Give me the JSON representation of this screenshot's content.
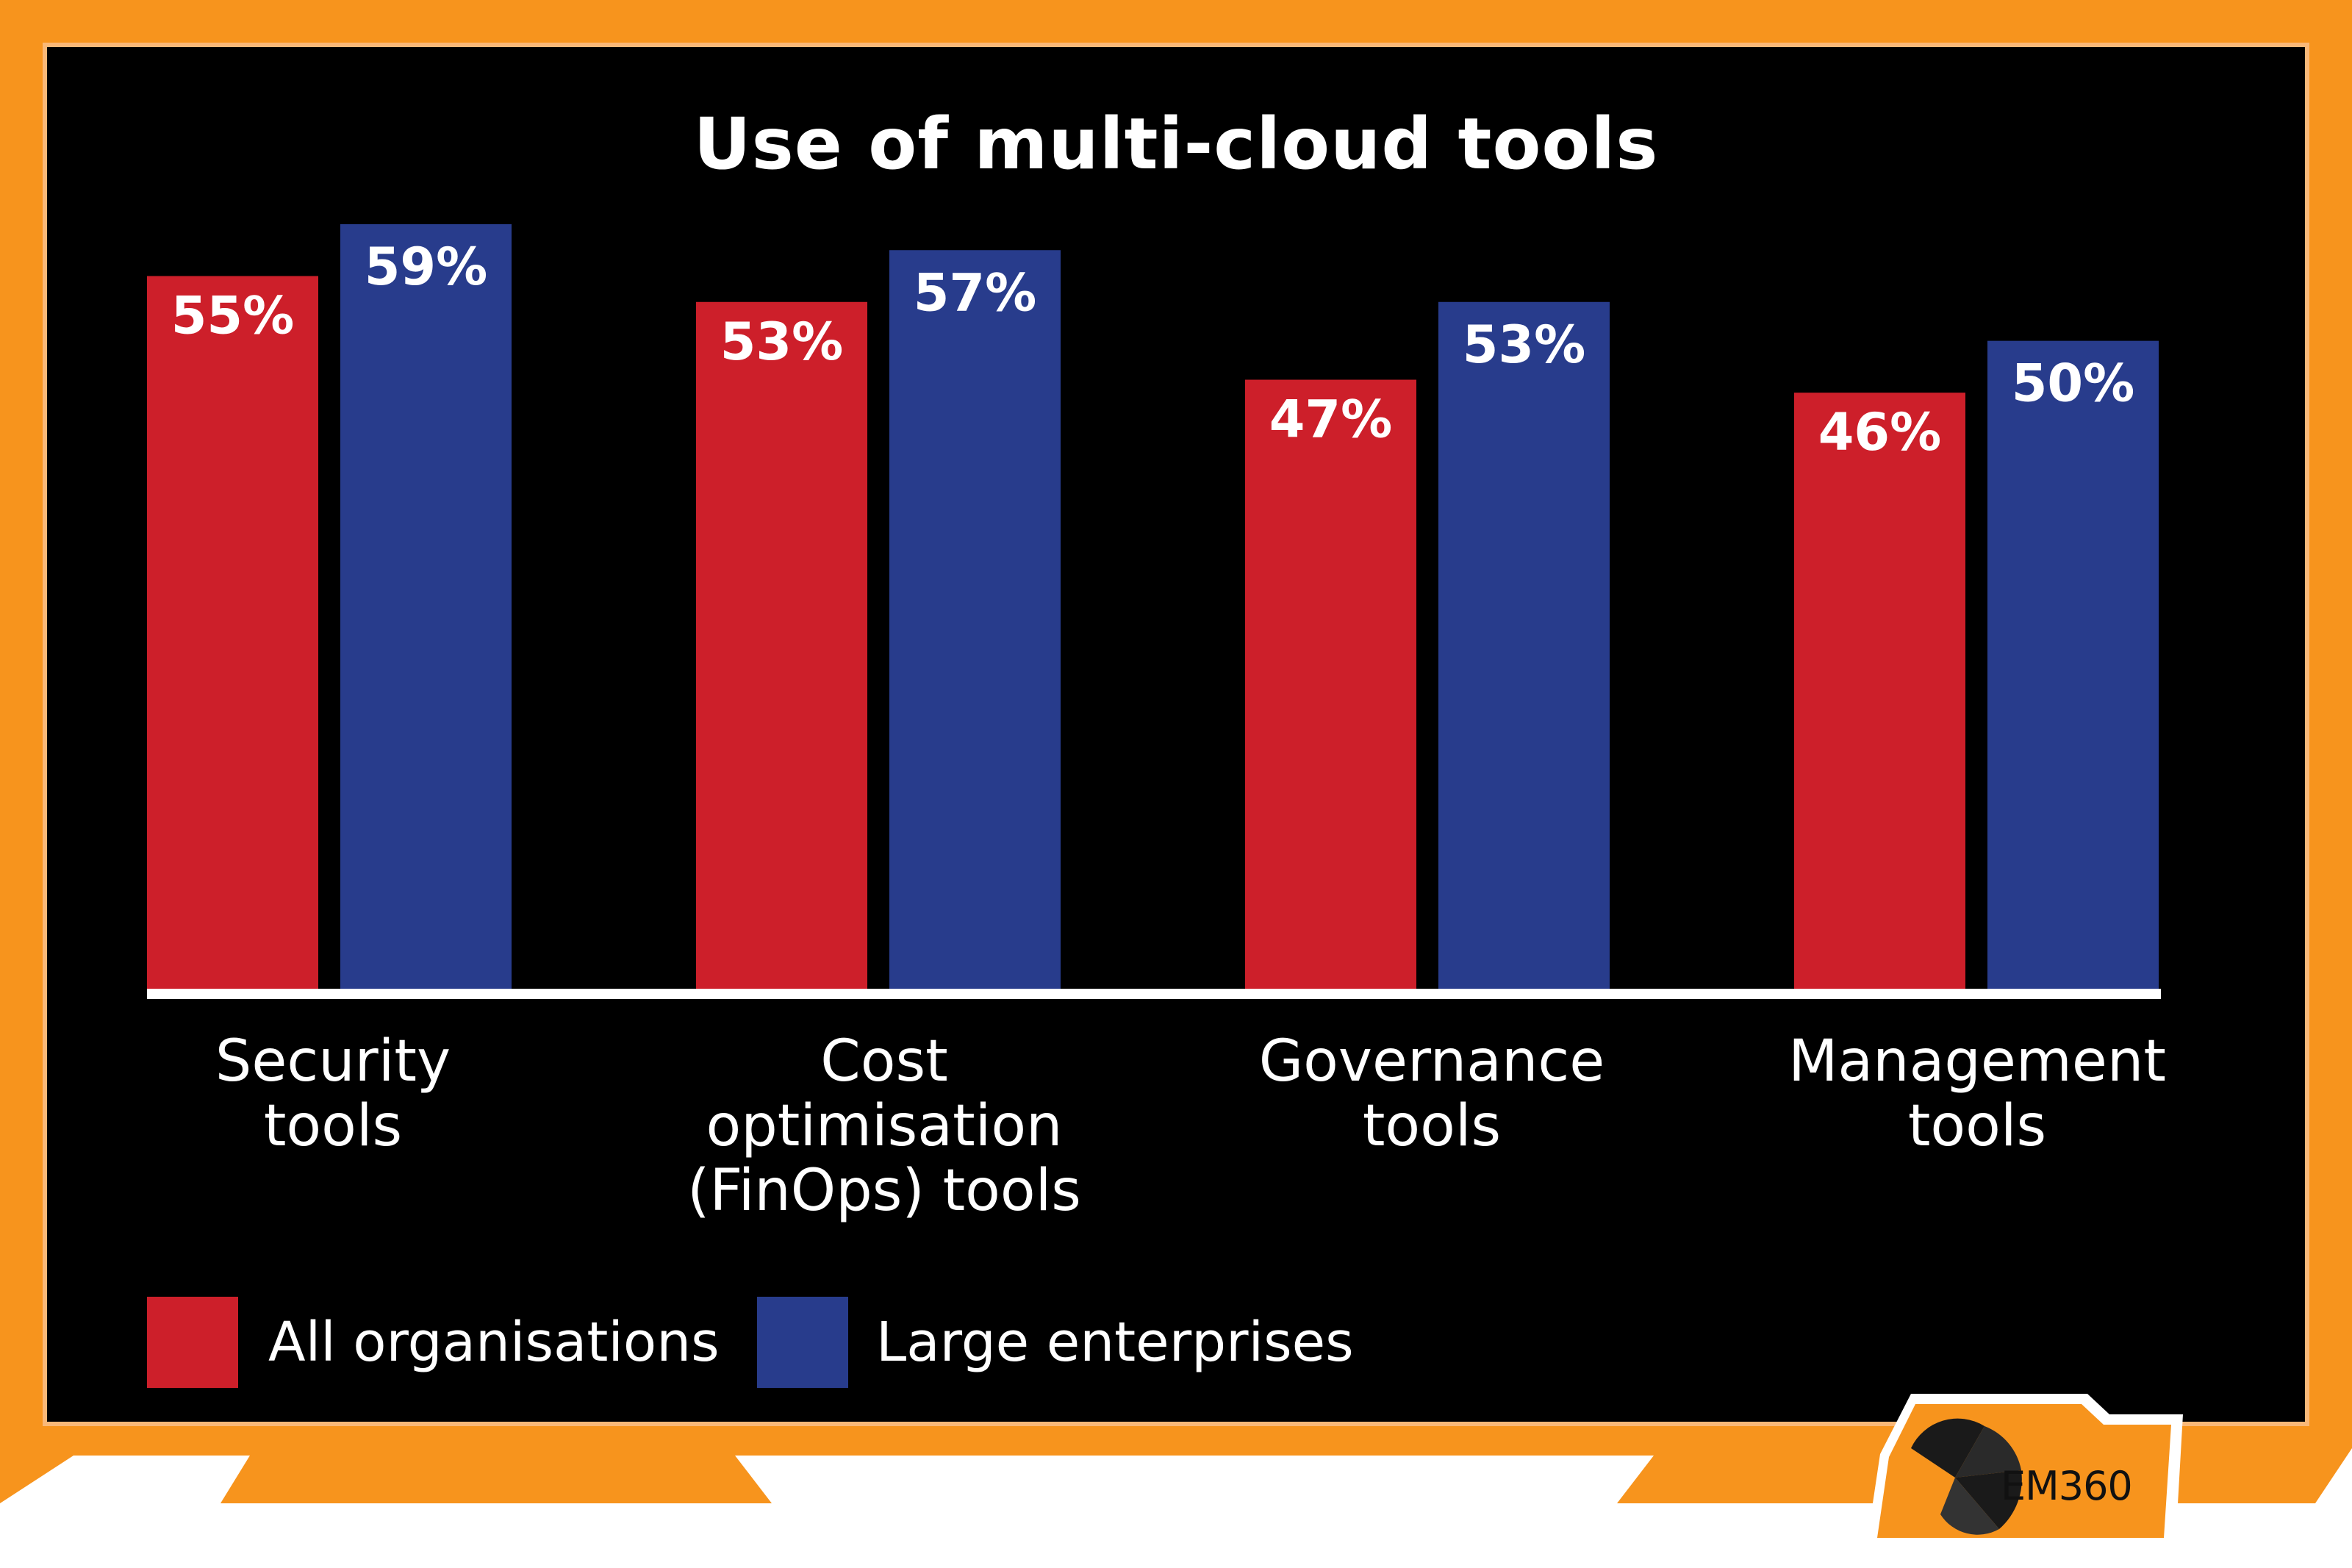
{
  "chart_data": {
    "type": "bar",
    "title": "Use of multi-cloud tools",
    "categories": [
      "Security\ntools",
      "Cost\noptimisation\n(FinOps) tools",
      "Governance\ntools",
      "Management\ntools"
    ],
    "series": [
      {
        "name": "All organisations",
        "values": [
          55,
          53,
          47,
          46
        ],
        "labels": [
          "55%",
          "53%",
          "47%",
          "46%"
        ],
        "color": "#cd1f2a"
      },
      {
        "name": "Large enterprises",
        "values": [
          59,
          57,
          53,
          50
        ],
        "labels": [
          "59%",
          "57%",
          "53%",
          "50%"
        ],
        "color": "#283c8c"
      }
    ],
    "ylim": [
      0,
      60
    ],
    "grid": false,
    "legend": "bottom-left"
  },
  "colors": {
    "frame": "#f7941d",
    "panel": "#000000",
    "axis": "#ffffff"
  },
  "brand": {
    "logo_text": "EM360",
    "logo_icon": "spiral-shell-icon"
  }
}
